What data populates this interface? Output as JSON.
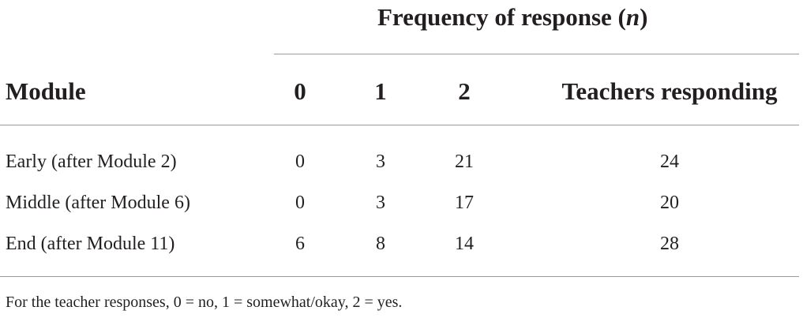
{
  "table": {
    "group_header": {
      "before": "Frequency of response (",
      "italic": "n",
      "after": ")"
    },
    "columns": [
      "Module",
      "0",
      "1",
      "2",
      "Teachers responding"
    ],
    "rows": [
      [
        "Early (after Module 2)",
        "0",
        "3",
        "21",
        "24"
      ],
      [
        "Middle (after Module 6)",
        "0",
        "3",
        "17",
        "20"
      ],
      [
        "End (after Module 11)",
        "6",
        "8",
        "14",
        "28"
      ]
    ],
    "footnote": "For the teacher responses, 0 = no, 1 = somewhat/okay, 2 = yes."
  }
}
